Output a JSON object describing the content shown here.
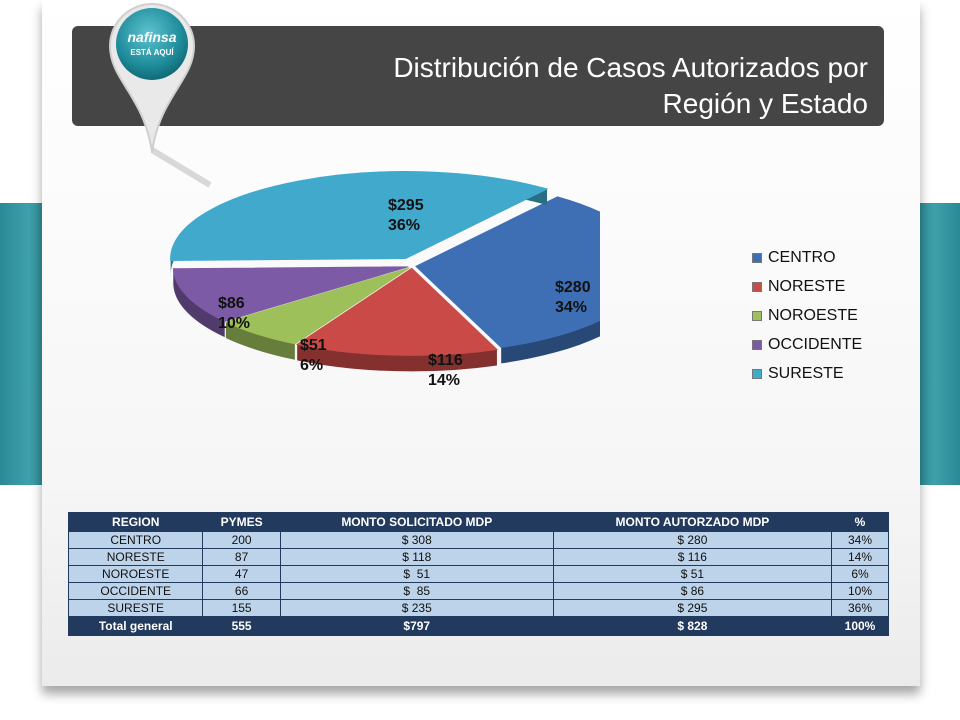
{
  "title": {
    "line1": "Distribución de Casos Autorizados por",
    "line2": "Región y Estado"
  },
  "logo": {
    "text": "nafinsa ESTÁ AQUÍ",
    "icon": "map-pin-icon"
  },
  "chart_data": {
    "type": "pie",
    "categories": [
      "CENTRO",
      "NORESTE",
      "NOROESTE",
      "OCCIDENTE",
      "SURESTE"
    ],
    "values": [
      280,
      116,
      51,
      86,
      295
    ],
    "value_labels": [
      "$280",
      "$116",
      "$51",
      "$86",
      "$295"
    ],
    "percent_labels": [
      "34%",
      "14%",
      "6%",
      "10%",
      "36%"
    ],
    "colors": [
      "#3e6fb5",
      "#c94a47",
      "#9ec05a",
      "#7c5aa6",
      "#40a9cc"
    ],
    "legend_position": "right"
  },
  "table": {
    "headers": [
      "REGION",
      "PYMES",
      "MONTO SOLICITADO MDP",
      "MONTO AUTORZADO MDP",
      "%"
    ],
    "rows": [
      [
        "CENTRO",
        "200",
        "$ 308",
        "$ 280",
        "34%"
      ],
      [
        "NORESTE",
        "87",
        "$ 118",
        "$ 116",
        "14%"
      ],
      [
        "NOROESTE",
        "47",
        "$  51",
        "$ 51",
        "6%"
      ],
      [
        "OCCIDENTE",
        "66",
        "$  85",
        "$ 86",
        "10%"
      ],
      [
        "SURESTE",
        "155",
        "$ 235",
        "$ 295",
        "36%"
      ]
    ],
    "total": [
      "Total general",
      "555",
      "$797",
      "$ 828",
      "100%"
    ]
  }
}
